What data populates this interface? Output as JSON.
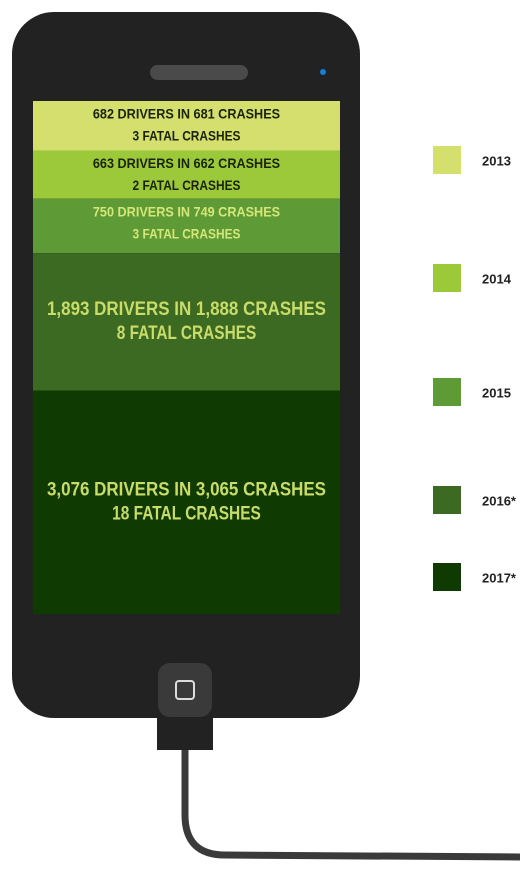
{
  "chart_data": {
    "type": "stacked-bar",
    "categories": [
      "2013",
      "2014",
      "2015",
      "2016*",
      "2017*"
    ],
    "values": [
      682,
      663,
      750,
      1893,
      3076
    ],
    "value_labels": [
      "682 DRIVERS IN 681 CRASHES",
      "663 DRIVERS IN 662 CRASHES",
      "750 DRIVERS IN 749 CRASHES",
      "1,893 DRIVERS IN 1,888 CRASHES",
      "3,076 DRIVERS IN 3,065 CRASHES"
    ],
    "fatal_labels": [
      "3 FATAL CRASHES",
      "2 FATAL CRASHES",
      "3 FATAL CRASHES",
      "8 FATAL CRASHES",
      "18 FATAL CRASHES"
    ],
    "colors": [
      "#d4df6e",
      "#9cc93a",
      "#5e9a35",
      "#3c6a22",
      "#0f3a02"
    ],
    "text_colors": [
      "#1b2408",
      "#1b2408",
      "#d6e77a",
      "#c9dc6a",
      "#c9dc6a"
    ]
  }
}
